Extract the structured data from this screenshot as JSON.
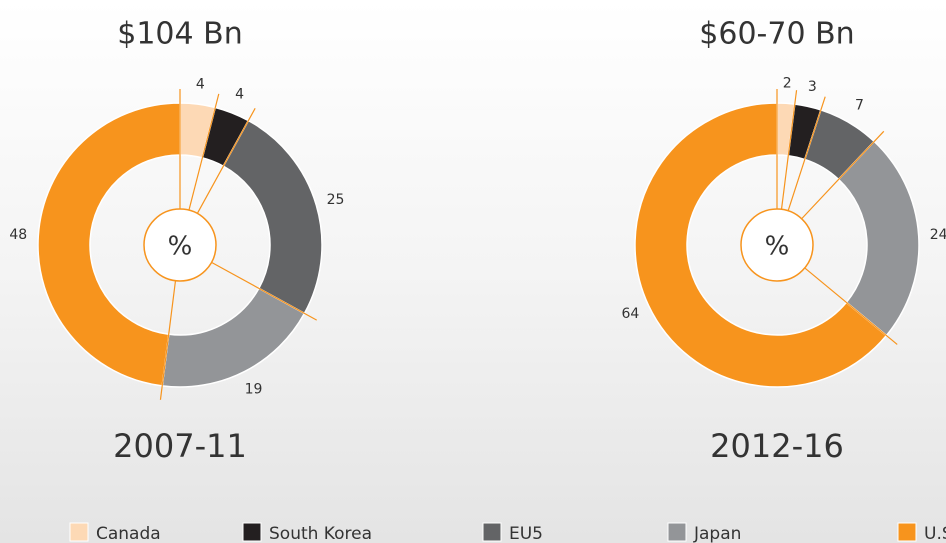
{
  "chart_data": [
    {
      "type": "donut",
      "title": "$104 Bn",
      "period": "2007-11",
      "center_label": "%",
      "categories": [
        "Canada",
        "South Korea",
        "EU5",
        "Japan",
        "U.S."
      ],
      "values": [
        4,
        4,
        25,
        19,
        48
      ],
      "colors": [
        "#fdd9b5",
        "#231f20",
        "#636466",
        "#939598",
        "#f7941d"
      ]
    },
    {
      "type": "donut",
      "title": "$60-70 Bn",
      "period": "2012-16",
      "center_label": "%",
      "categories": [
        "Canada",
        "South Korea",
        "EU5",
        "Japan",
        "U.S."
      ],
      "values": [
        2,
        3,
        7,
        24,
        64
      ],
      "colors": [
        "#fdd9b5",
        "#231f20",
        "#636466",
        "#939598",
        "#f7941d"
      ]
    }
  ]
}
